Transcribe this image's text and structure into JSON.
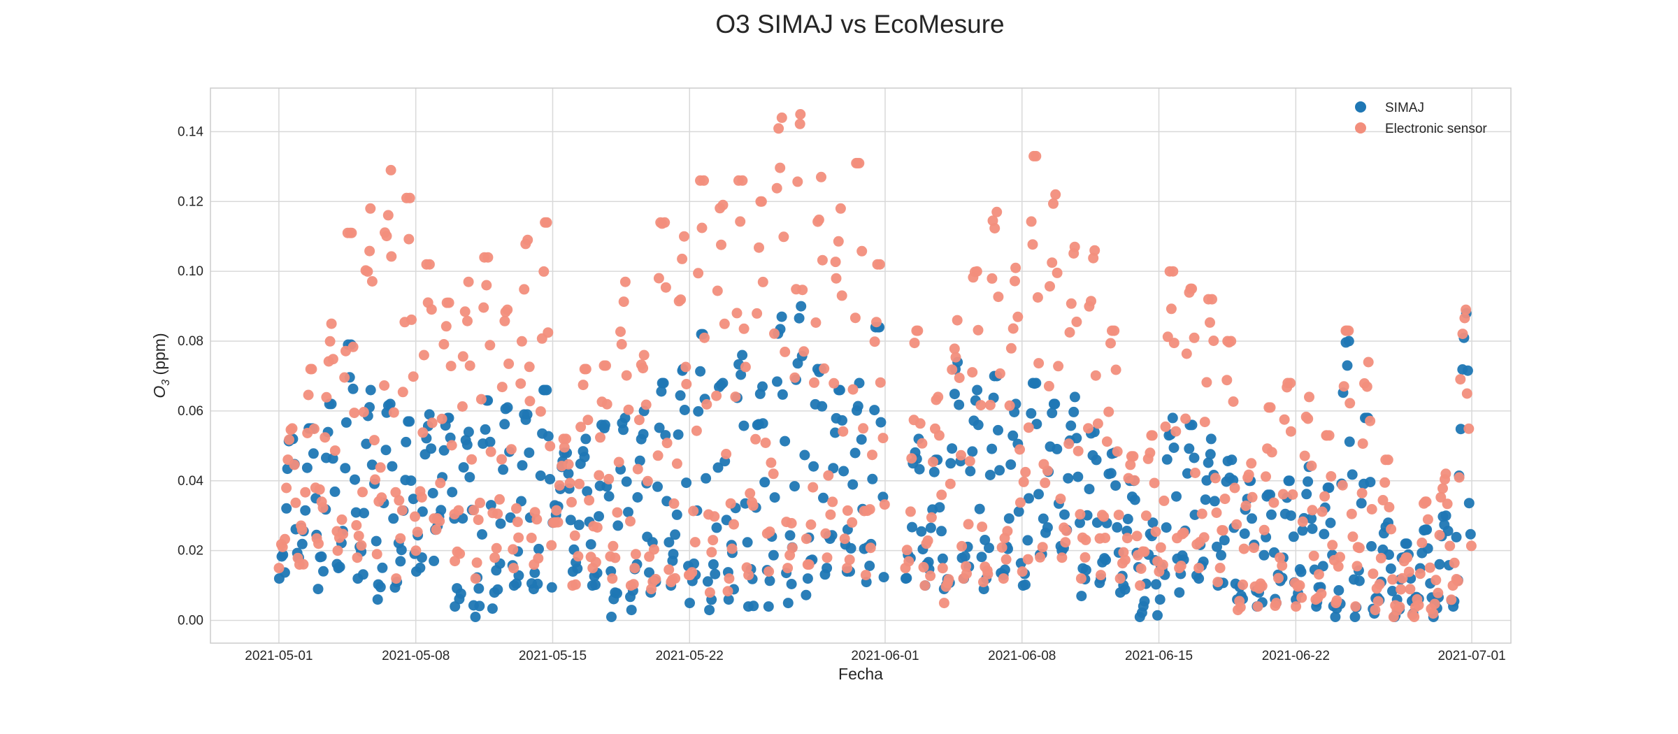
{
  "chart_data": {
    "type": "scatter",
    "title": "O3 SIMAJ vs EcoMesure",
    "xlabel": "Fecha",
    "ylabel_main": "O",
    "ylabel_sub": "3",
    "ylabel_unit": " (ppm)",
    "xlim": [
      "2021-04-27T12:00",
      "2021-07-03T00:00"
    ],
    "ylim": [
      -0.0065,
      0.1525
    ],
    "x_ticks": [
      "2021-05-01",
      "2021-05-08",
      "2021-05-15",
      "2021-05-22",
      "2021-06-01",
      "2021-06-08",
      "2021-06-15",
      "2021-06-22",
      "2021-07-01"
    ],
    "y_ticks": [
      0.0,
      0.02,
      0.04,
      0.06,
      0.08,
      0.1,
      0.12,
      0.14
    ],
    "y_tick_labels": [
      "0.00",
      "0.02",
      "0.04",
      "0.06",
      "0.08",
      "0.10",
      "0.12",
      "0.14"
    ],
    "grid": true,
    "legend_position": "top-right",
    "series": [
      {
        "name": "SIMAJ",
        "color": "#1f77b4",
        "daily_range": [
          [
            "2021-05-01",
            0.012,
            0.052
          ],
          [
            "2021-05-02",
            0.018,
            0.055
          ],
          [
            "2021-05-03",
            0.009,
            0.062
          ],
          [
            "2021-05-04",
            0.015,
            0.079
          ],
          [
            "2021-05-05",
            0.012,
            0.066
          ],
          [
            "2021-05-06",
            0.006,
            0.062
          ],
          [
            "2021-05-07",
            0.011,
            0.057
          ],
          [
            "2021-05-08",
            0.014,
            0.059
          ],
          [
            "2021-05-09",
            0.026,
            0.058
          ],
          [
            "2021-05-10",
            0.004,
            0.054
          ],
          [
            "2021-05-11",
            0.001,
            0.063
          ],
          [
            "2021-05-12",
            0.008,
            0.061
          ],
          [
            "2021-05-13",
            0.01,
            0.059
          ],
          [
            "2021-05-14",
            0.009,
            0.066
          ],
          [
            "2021-05-15",
            0.028,
            0.048
          ],
          [
            "2021-05-16",
            0.014,
            0.052
          ],
          [
            "2021-05-17",
            0.01,
            0.056
          ],
          [
            "2021-05-18",
            0.001,
            0.058
          ],
          [
            "2021-05-19",
            0.003,
            0.06
          ],
          [
            "2021-05-20",
            0.008,
            0.068
          ],
          [
            "2021-05-21",
            0.01,
            0.072
          ],
          [
            "2021-05-22",
            0.005,
            0.082
          ],
          [
            "2021-05-23",
            0.003,
            0.068
          ],
          [
            "2021-05-24",
            0.006,
            0.076
          ],
          [
            "2021-05-25",
            0.004,
            0.067
          ],
          [
            "2021-05-26",
            0.004,
            0.087
          ],
          [
            "2021-05-27",
            0.005,
            0.09
          ],
          [
            "2021-05-28",
            0.012,
            0.072
          ],
          [
            "2021-05-29",
            0.015,
            0.066
          ],
          [
            "2021-05-30",
            0.014,
            0.068
          ],
          [
            "2021-05-31",
            0.011,
            0.084
          ],
          [
            "2021-06-02",
            0.012,
            0.052
          ],
          [
            "2021-06-03",
            0.01,
            0.046
          ],
          [
            "2021-06-04",
            0.009,
            0.074
          ],
          [
            "2021-06-05",
            0.012,
            0.066
          ],
          [
            "2021-06-06",
            0.009,
            0.07
          ],
          [
            "2021-06-07",
            0.013,
            0.062
          ],
          [
            "2021-06-08",
            0.01,
            0.068
          ],
          [
            "2021-06-09",
            0.019,
            0.062
          ],
          [
            "2021-06-10",
            0.02,
            0.064
          ],
          [
            "2021-06-11",
            0.007,
            0.054
          ],
          [
            "2021-06-12",
            0.012,
            0.048
          ],
          [
            "2021-06-13",
            0.008,
            0.04
          ],
          [
            "2021-06-14",
            0.001,
            0.028
          ],
          [
            "2021-06-15",
            0.006,
            0.058
          ],
          [
            "2021-06-16",
            0.008,
            0.056
          ],
          [
            "2021-06-17",
            0.012,
            0.052
          ],
          [
            "2021-06-18",
            0.01,
            0.046
          ],
          [
            "2021-06-19",
            0.006,
            0.04
          ],
          [
            "2021-06-20",
            0.004,
            0.036
          ],
          [
            "2021-06-21",
            0.005,
            0.04
          ],
          [
            "2021-06-22",
            0.006,
            0.044
          ],
          [
            "2021-06-23",
            0.004,
            0.038
          ],
          [
            "2021-06-24",
            0.001,
            0.08
          ],
          [
            "2021-06-25",
            0.001,
            0.058
          ],
          [
            "2021-06-26",
            0.002,
            0.028
          ],
          [
            "2021-06-27",
            0.001,
            0.022
          ],
          [
            "2021-06-28",
            0.002,
            0.026
          ],
          [
            "2021-06-29",
            0.001,
            0.03
          ],
          [
            "2021-06-30",
            0.004,
            0.088
          ]
        ]
      },
      {
        "name": "Electronic sensor",
        "color": "#f28e7c",
        "daily_range": [
          [
            "2021-05-01",
            0.015,
            0.055
          ],
          [
            "2021-05-02",
            0.016,
            0.072
          ],
          [
            "2021-05-03",
            0.022,
            0.085
          ],
          [
            "2021-05-04",
            0.02,
            0.111
          ],
          [
            "2021-05-05",
            0.018,
            0.118
          ],
          [
            "2021-05-06",
            0.019,
            0.129
          ],
          [
            "2021-05-07",
            0.012,
            0.121
          ],
          [
            "2021-05-08",
            0.02,
            0.102
          ],
          [
            "2021-05-09",
            0.026,
            0.091
          ],
          [
            "2021-05-10",
            0.017,
            0.097
          ],
          [
            "2021-05-11",
            0.012,
            0.104
          ],
          [
            "2021-05-12",
            0.018,
            0.089
          ],
          [
            "2021-05-13",
            0.015,
            0.109
          ],
          [
            "2021-05-14",
            0.016,
            0.114
          ],
          [
            "2021-05-15",
            0.028,
            0.052
          ],
          [
            "2021-05-16",
            0.01,
            0.072
          ],
          [
            "2021-05-17",
            0.015,
            0.073
          ],
          [
            "2021-05-18",
            0.012,
            0.097
          ],
          [
            "2021-05-19",
            0.01,
            0.076
          ],
          [
            "2021-05-20",
            0.009,
            0.114
          ],
          [
            "2021-05-21",
            0.011,
            0.11
          ],
          [
            "2021-05-22",
            0.013,
            0.126
          ],
          [
            "2021-05-23",
            0.008,
            0.119
          ],
          [
            "2021-05-24",
            0.012,
            0.126
          ],
          [
            "2021-05-25",
            0.013,
            0.12
          ],
          [
            "2021-05-26",
            0.014,
            0.144
          ],
          [
            "2021-05-27",
            0.015,
            0.145
          ],
          [
            "2021-05-28",
            0.016,
            0.127
          ],
          [
            "2021-05-29",
            0.018,
            0.118
          ],
          [
            "2021-05-30",
            0.015,
            0.131
          ],
          [
            "2021-05-31",
            0.013,
            0.102
          ],
          [
            "2021-06-02",
            0.015,
            0.083
          ],
          [
            "2021-06-03",
            0.01,
            0.064
          ],
          [
            "2021-06-04",
            0.005,
            0.086
          ],
          [
            "2021-06-05",
            0.012,
            0.1
          ],
          [
            "2021-06-06",
            0.011,
            0.117
          ],
          [
            "2021-06-07",
            0.012,
            0.101
          ],
          [
            "2021-06-08",
            0.014,
            0.133
          ],
          [
            "2021-06-09",
            0.021,
            0.122
          ],
          [
            "2021-06-10",
            0.018,
            0.107
          ],
          [
            "2021-06-11",
            0.012,
            0.106
          ],
          [
            "2021-06-12",
            0.013,
            0.083
          ],
          [
            "2021-06-13",
            0.012,
            0.047
          ],
          [
            "2021-06-14",
            0.01,
            0.053
          ],
          [
            "2021-06-15",
            0.014,
            0.1
          ],
          [
            "2021-06-16",
            0.015,
            0.095
          ],
          [
            "2021-06-17",
            0.015,
            0.092
          ],
          [
            "2021-06-18",
            0.011,
            0.08
          ],
          [
            "2021-06-19",
            0.003,
            0.045
          ],
          [
            "2021-06-20",
            0.004,
            0.061
          ],
          [
            "2021-06-21",
            0.005,
            0.068
          ],
          [
            "2021-06-22",
            0.004,
            0.064
          ],
          [
            "2021-06-23",
            0.006,
            0.053
          ],
          [
            "2021-06-24",
            0.005,
            0.083
          ],
          [
            "2021-06-25",
            0.004,
            0.074
          ],
          [
            "2021-06-26",
            0.003,
            0.046
          ],
          [
            "2021-06-27",
            0.001,
            0.018
          ],
          [
            "2021-06-28",
            0.001,
            0.034
          ],
          [
            "2021-06-29",
            0.002,
            0.042
          ],
          [
            "2021-06-30",
            0.01,
            0.089
          ]
        ]
      }
    ]
  }
}
